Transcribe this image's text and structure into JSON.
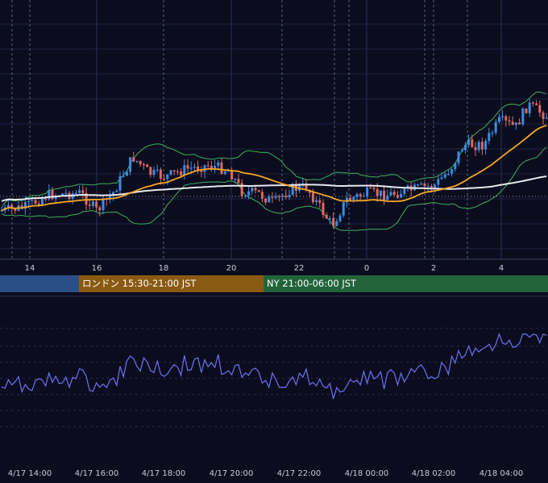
{
  "chart_data": [
    {
      "type": "candlestick",
      "name": "price",
      "x_ticks": [
        "14",
        "16",
        "18",
        "20",
        "22",
        "0",
        "2",
        "4"
      ],
      "overlays": [
        {
          "kind": "moving-average",
          "color": "#f5a623"
        },
        {
          "kind": "moving-average",
          "color": "#e8e8ee"
        },
        {
          "kind": "bollinger-bands",
          "color": "#3fae5c"
        }
      ],
      "candle_colors": {
        "up": "#3b8be0",
        "down": "#e0685e"
      },
      "reference_line": "dotted"
    },
    {
      "type": "line",
      "name": "oscillator",
      "color": "#6f6ff2",
      "x_ticks": [
        "4/17 14:00",
        "4/17 16:00",
        "4/17 18:00",
        "4/17 20:00",
        "4/17 22:00",
        "4/18 00:00",
        "4/18 02:00",
        "4/18 04:00"
      ]
    }
  ],
  "sessions": [
    {
      "label": "",
      "color": "#2a4f86"
    },
    {
      "label": "ロンドン 15:30-21:00 JST",
      "color": "#8b5a12"
    },
    {
      "label": "NY 21:00-06:00 JST",
      "color": "#22643a"
    }
  ]
}
